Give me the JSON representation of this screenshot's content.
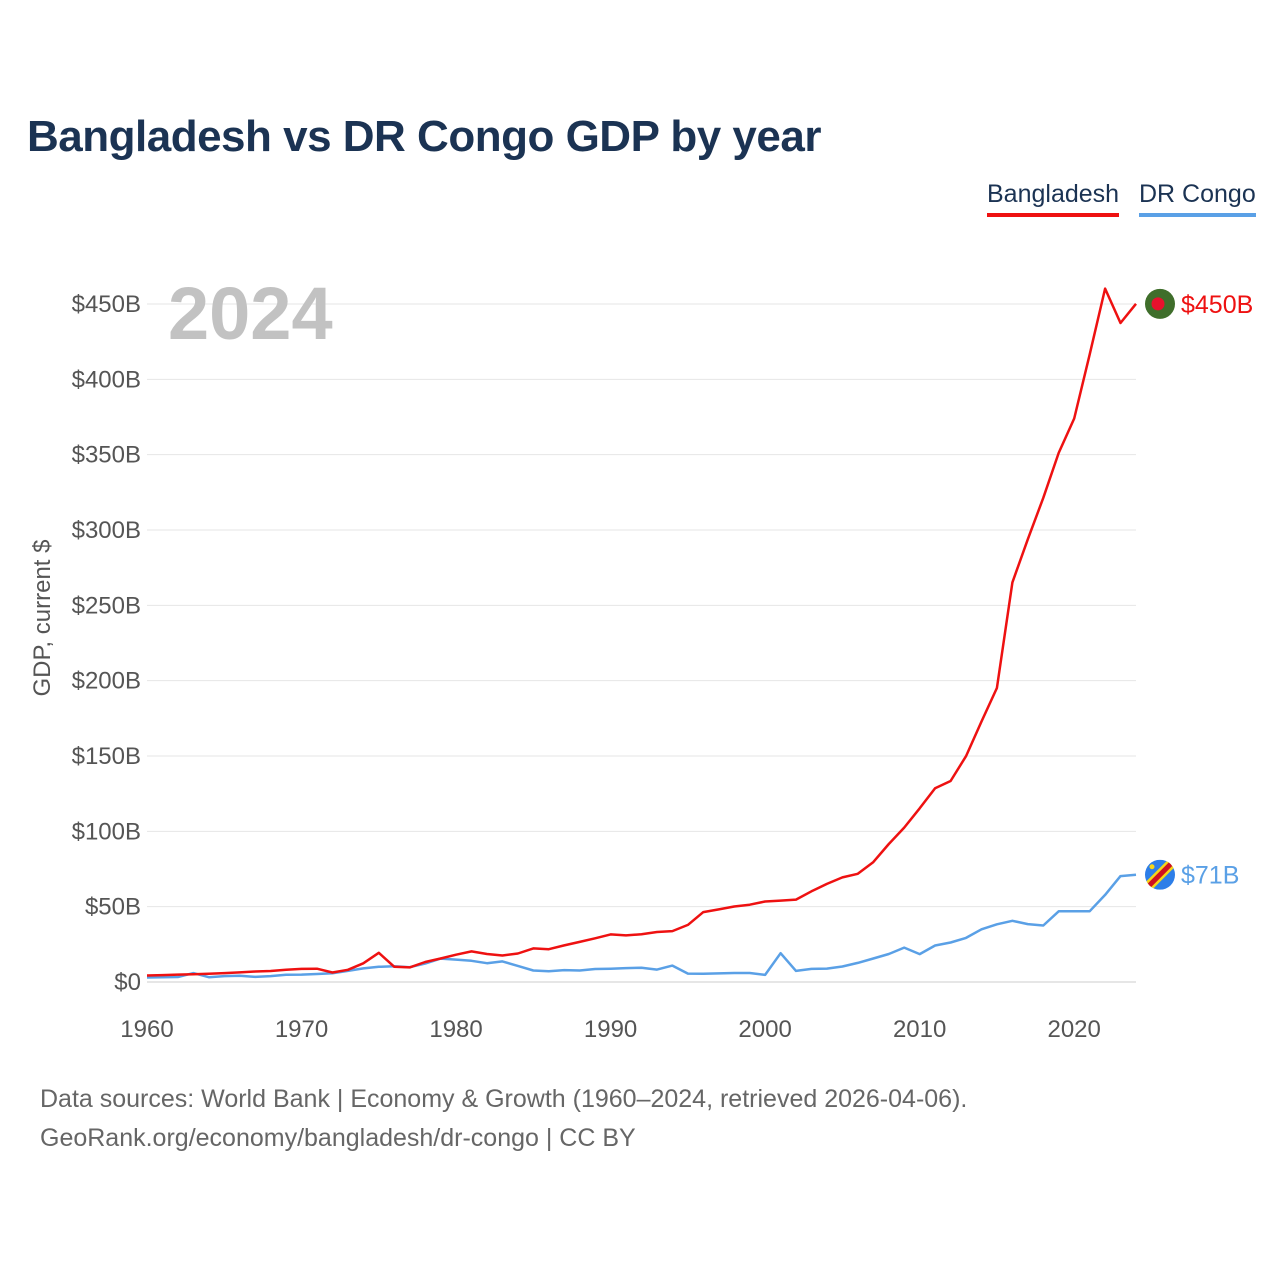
{
  "title": "Bangladesh vs DR Congo GDP by year",
  "legend": [
    {
      "label": "Bangladesh",
      "color": "#ee1111"
    },
    {
      "label": "DR Congo",
      "color": "#5aa0e6"
    }
  ],
  "year_label": "2024",
  "sources": {
    "line1": "Data sources: World Bank | Economy & Growth (1960–2024, retrieved 2026-04-06).",
    "line2": "GeoRank.org/economy/bangladesh/dr-congo | CC BY"
  },
  "chart_data": {
    "type": "line",
    "title": "Bangladesh vs DR Congo GDP by year",
    "xlabel": "",
    "ylabel": "GDP, current $",
    "xlim": [
      1960,
      2024
    ],
    "ylim": [
      0,
      450
    ],
    "y_unit": "billions USD",
    "grid": true,
    "legend_position": "top-right",
    "x_ticks": [
      1960,
      1970,
      1980,
      1990,
      2000,
      2010,
      2020
    ],
    "x_tick_labels": [
      "1960",
      "1970",
      "1980",
      "1990",
      "2000",
      "2010",
      "2020"
    ],
    "y_ticks": [
      0,
      50,
      100,
      150,
      200,
      250,
      300,
      350,
      400,
      450
    ],
    "y_tick_labels": [
      "$0",
      "$50B",
      "$100B",
      "$150B",
      "$200B",
      "$250B",
      "$300B",
      "$350B",
      "$400B",
      "$450B"
    ],
    "x": [
      1960,
      1961,
      1962,
      1963,
      1964,
      1965,
      1966,
      1967,
      1968,
      1969,
      1970,
      1971,
      1972,
      1973,
      1974,
      1975,
      1976,
      1977,
      1978,
      1979,
      1980,
      1981,
      1982,
      1983,
      1984,
      1985,
      1986,
      1987,
      1988,
      1989,
      1990,
      1991,
      1992,
      1993,
      1994,
      1995,
      1996,
      1997,
      1998,
      1999,
      2000,
      2001,
      2002,
      2003,
      2004,
      2005,
      2006,
      2007,
      2008,
      2009,
      2010,
      2011,
      2012,
      2013,
      2014,
      2015,
      2016,
      2017,
      2018,
      2019,
      2020,
      2021,
      2022,
      2023,
      2024
    ],
    "series": [
      {
        "name": "Bangladesh",
        "color": "#ee1111",
        "end_label": "$450B",
        "values": [
          4.3,
          4.6,
          4.9,
          5.1,
          5.5,
          5.9,
          6.4,
          7.0,
          7.3,
          8.1,
          8.7,
          8.8,
          6.3,
          8.1,
          12.4,
          19.4,
          10.1,
          9.7,
          13.3,
          15.6,
          18.1,
          20.3,
          18.6,
          17.6,
          18.9,
          22.3,
          21.8,
          24.3,
          26.6,
          29.0,
          31.6,
          30.9,
          31.7,
          33.2,
          33.8,
          37.9,
          46.4,
          48.2,
          50.1,
          51.3,
          53.4,
          54.0,
          54.7,
          60.2,
          65.1,
          69.4,
          71.8,
          79.6,
          91.6,
          102.5,
          115.3,
          128.6,
          133.4,
          149.9,
          172.9,
          195.1,
          265.2,
          293.8,
          321.4,
          351.2,
          374.0,
          416.3,
          460.2,
          437.4,
          450.1
        ]
      },
      {
        "name": "DR Congo",
        "color": "#5aa0e6",
        "end_label": "$71B",
        "values": [
          3.0,
          3.1,
          3.3,
          5.9,
          3.2,
          3.9,
          4.2,
          3.4,
          3.9,
          4.8,
          4.9,
          5.3,
          5.8,
          7.4,
          9.0,
          10.1,
          10.4,
          9.8,
          12.3,
          15.5,
          14.9,
          14.1,
          12.5,
          13.7,
          10.7,
          7.6,
          7.2,
          7.9,
          7.6,
          8.6,
          8.8,
          9.2,
          9.4,
          8.2,
          10.9,
          5.6,
          5.5,
          5.7,
          6.0,
          6.0,
          4.7,
          19.1,
          7.4,
          8.7,
          8.9,
          10.3,
          12.7,
          15.6,
          18.6,
          22.8,
          18.5,
          24.2,
          26.2,
          29.3,
          35.0,
          38.3,
          40.6,
          38.4,
          37.5,
          46.9,
          46.9,
          46.9,
          57.8,
          70.3,
          71.2
        ]
      }
    ]
  }
}
